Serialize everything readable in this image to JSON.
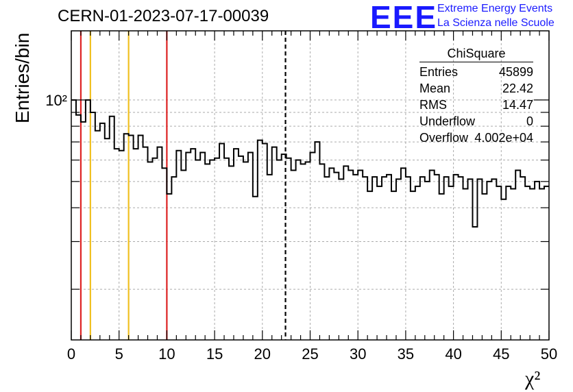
{
  "header": {
    "title": "CERN-01-2023-07-17-00039",
    "logo_text": "EEE",
    "logo_line1": "Extreme Energy Events",
    "logo_line2": "La Scienza nelle Scuole"
  },
  "stats": {
    "title": "ChiSquare",
    "rows": [
      {
        "label": "Entries",
        "value": "45899"
      },
      {
        "label": "Mean",
        "value": "22.42"
      },
      {
        "label": "RMS",
        "value": "14.47"
      },
      {
        "label": "Underflow",
        "value": "0"
      },
      {
        "label": "Overflow",
        "value": "4.002e+04"
      }
    ]
  },
  "chart_data": {
    "type": "histogram",
    "title": "CERN-01-2023-07-17-00039",
    "xlabel": "χ²",
    "ylabel": "Entries/bin",
    "xlim": [
      0,
      50
    ],
    "ylim": [
      13,
      180
    ],
    "y_scale": "log",
    "x_ticks": [
      0,
      5,
      10,
      15,
      20,
      25,
      30,
      35,
      40,
      45,
      50
    ],
    "y_tick_labels": [
      {
        "value": 100,
        "label": "10²"
      }
    ],
    "grid": true,
    "bin_width": 0.5,
    "bin_counts": [
      100,
      88,
      83,
      100,
      90,
      77,
      82,
      72,
      87,
      66,
      65,
      75,
      74,
      66,
      74,
      67,
      59,
      61,
      67,
      56,
      45,
      52,
      65,
      55,
      64,
      66,
      60,
      64,
      58,
      60,
      61,
      69,
      61,
      57,
      66,
      62,
      59,
      64,
      44,
      71,
      69,
      53,
      67,
      60,
      63,
      61,
      55,
      60,
      58,
      59,
      64,
      70,
      58,
      52,
      56,
      54,
      51,
      57,
      55,
      53,
      55,
      52,
      46,
      52,
      48,
      52,
      53,
      46,
      51,
      56,
      52,
      46,
      48,
      52,
      50,
      55,
      53,
      45,
      52,
      48,
      53,
      52,
      47,
      51,
      34,
      51,
      45,
      50,
      51,
      48,
      43,
      48,
      47,
      55,
      52,
      48,
      47,
      50,
      47,
      48
    ],
    "vertical_lines": [
      {
        "x": 1,
        "color": "#dd2222",
        "style": "solid"
      },
      {
        "x": 2,
        "color": "#f0c020",
        "style": "solid"
      },
      {
        "x": 6,
        "color": "#f0c020",
        "style": "solid"
      },
      {
        "x": 10,
        "color": "#dd2222",
        "style": "solid"
      },
      {
        "x": 22.42,
        "color": "#000000",
        "style": "dashed"
      }
    ]
  },
  "colors": {
    "logo": "#1a1aff",
    "histogram": "#000000",
    "grid": "#aaaaaa"
  }
}
